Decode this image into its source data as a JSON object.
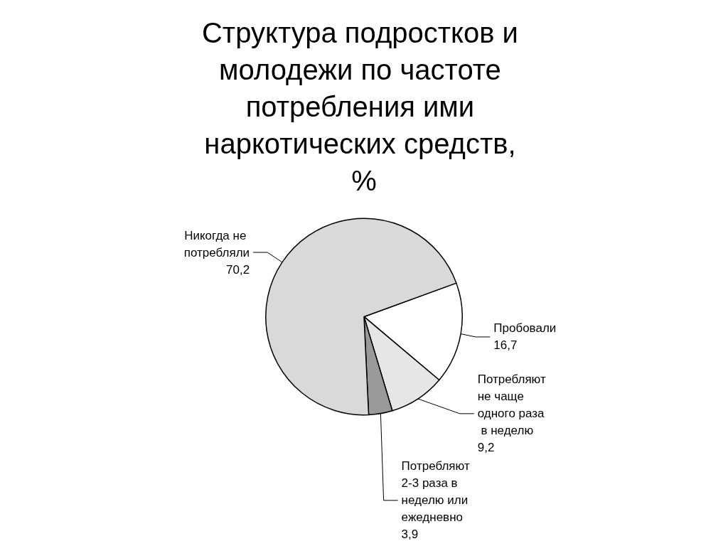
{
  "chart_data": {
    "type": "pie",
    "title": "Структура подростков и молодежи по частоте потребления ими наркотических средств, %",
    "categories": [
      "Пробовали",
      "Потребляют не чаще одного раза в неделю",
      "Потребляют 2-3 раза в неделю или ежедневно",
      "Никогда не потребляли"
    ],
    "values": [
      16.7,
      9.2,
      3.9,
      70.2
    ],
    "value_labels": [
      "16,7",
      "9,2",
      "3,9",
      "70,2"
    ],
    "colors": [
      "#ffffff",
      "#e6e6e6",
      "#999999",
      "#d9d9d9"
    ],
    "legend": false
  }
}
